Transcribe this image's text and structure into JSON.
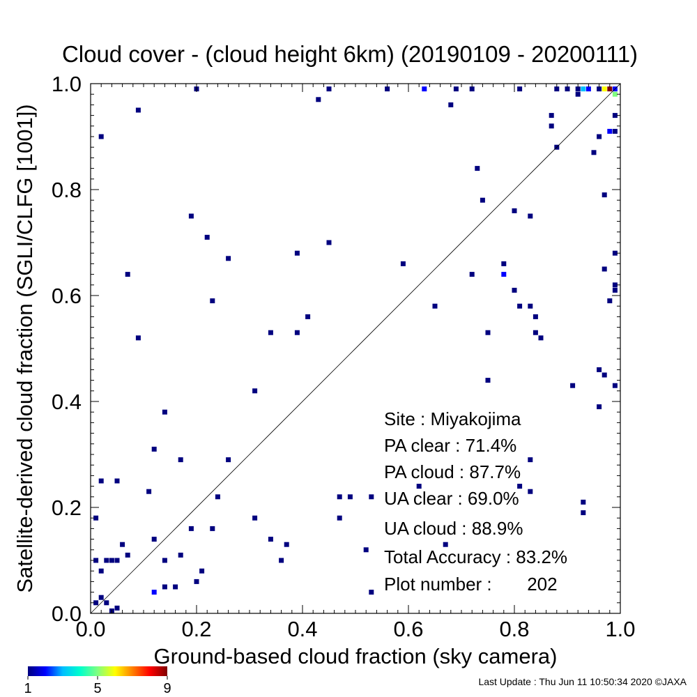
{
  "chart_data": {
    "type": "scatter",
    "title": "Cloud cover - (cloud height 6km)  (20190109 - 20200111)",
    "xlabel": "Ground-based cloud fraction (sky camera)",
    "ylabel": "Satellite-derived cloud fraction (SGLI/CLFG [1001])",
    "xlim": [
      0,
      1
    ],
    "ylim": [
      0,
      1
    ],
    "xticks": [
      "0.0",
      "0.2",
      "0.4",
      "0.6",
      "0.8",
      "1.0"
    ],
    "yticks": [
      "0.0",
      "0.2",
      "0.4",
      "0.6",
      "0.8",
      "1.0"
    ],
    "grid": false,
    "reference_line": "1:1 diagonal",
    "colorbar": {
      "ticks": [
        "1",
        "5",
        "9"
      ],
      "min": 1,
      "max": 9,
      "colors": [
        "#00007f",
        "#0000ff",
        "#00bfff",
        "#00ffcc",
        "#80ff80",
        "#ffff00",
        "#ff8000",
        "#ff0000",
        "#7f0000"
      ]
    },
    "stats": [
      "Site : Miyakojima",
      "PA clear :  71.4%",
      "PA cloud :  87.7%",
      "UA clear :  69.0%",
      "UA cloud :  88.9%",
      "Total Accuracy :  83.2%",
      "Plot number :       202"
    ],
    "footer": "Last Update : Thu Jun 11 10:50:34 2020  ©JAXA",
    "points": [
      [
        0.98,
        0.99,
        9
      ],
      [
        0.99,
        0.98,
        5
      ],
      [
        0.97,
        0.99,
        6
      ],
      [
        0.99,
        0.99,
        2
      ],
      [
        0.93,
        0.99,
        3
      ],
      [
        0.94,
        0.99,
        2
      ],
      [
        0.63,
        0.99,
        2
      ],
      [
        0.78,
        0.64,
        2
      ],
      [
        0.12,
        0.04,
        2
      ],
      [
        0.98,
        0.91,
        2
      ],
      [
        0.2,
        0.99,
        1
      ],
      [
        0.45,
        0.99,
        1
      ],
      [
        0.56,
        0.99,
        1
      ],
      [
        0.69,
        0.99,
        1
      ],
      [
        0.72,
        0.99,
        1
      ],
      [
        0.81,
        0.99,
        1
      ],
      [
        0.88,
        0.99,
        1
      ],
      [
        0.9,
        0.99,
        1
      ],
      [
        0.92,
        0.99,
        1
      ],
      [
        0.96,
        0.99,
        1
      ],
      [
        0.43,
        0.97,
        1
      ],
      [
        0.68,
        0.96,
        1
      ],
      [
        0.92,
        0.98,
        1
      ],
      [
        0.09,
        0.95,
        1
      ],
      [
        0.02,
        0.9,
        1
      ],
      [
        0.87,
        0.94,
        1
      ],
      [
        0.87,
        0.92,
        1
      ],
      [
        0.88,
        0.88,
        1
      ],
      [
        0.95,
        0.87,
        1
      ],
      [
        0.96,
        0.9,
        1
      ],
      [
        0.99,
        0.91,
        1
      ],
      [
        0.99,
        0.94,
        1
      ],
      [
        0.73,
        0.84,
        1
      ],
      [
        0.74,
        0.78,
        1
      ],
      [
        0.97,
        0.79,
        1
      ],
      [
        0.19,
        0.75,
        1
      ],
      [
        0.22,
        0.71,
        1
      ],
      [
        0.26,
        0.67,
        1
      ],
      [
        0.45,
        0.7,
        1
      ],
      [
        0.39,
        0.68,
        1
      ],
      [
        0.07,
        0.64,
        1
      ],
      [
        0.59,
        0.66,
        1
      ],
      [
        0.72,
        0.64,
        1
      ],
      [
        0.78,
        0.66,
        1
      ],
      [
        0.8,
        0.76,
        1
      ],
      [
        0.83,
        0.75,
        1
      ],
      [
        0.97,
        0.65,
        1
      ],
      [
        0.99,
        0.68,
        1
      ],
      [
        0.99,
        0.62,
        1
      ],
      [
        0.99,
        0.61,
        1
      ],
      [
        0.98,
        0.59,
        1
      ],
      [
        0.23,
        0.59,
        1
      ],
      [
        0.65,
        0.58,
        1
      ],
      [
        0.8,
        0.61,
        1
      ],
      [
        0.81,
        0.58,
        1
      ],
      [
        0.83,
        0.58,
        1
      ],
      [
        0.84,
        0.56,
        1
      ],
      [
        0.84,
        0.53,
        1
      ],
      [
        0.85,
        0.52,
        1
      ],
      [
        0.41,
        0.56,
        1
      ],
      [
        0.34,
        0.53,
        1
      ],
      [
        0.39,
        0.53,
        1
      ],
      [
        0.75,
        0.53,
        1
      ],
      [
        0.09,
        0.52,
        1
      ],
      [
        0.96,
        0.46,
        1
      ],
      [
        0.97,
        0.45,
        1
      ],
      [
        0.99,
        0.43,
        1
      ],
      [
        0.91,
        0.43,
        1
      ],
      [
        0.75,
        0.44,
        1
      ],
      [
        0.31,
        0.42,
        1
      ],
      [
        0.96,
        0.39,
        1
      ],
      [
        0.14,
        0.38,
        1
      ],
      [
        0.12,
        0.31,
        1
      ],
      [
        0.17,
        0.29,
        1
      ],
      [
        0.26,
        0.29,
        1
      ],
      [
        0.83,
        0.29,
        1
      ],
      [
        0.02,
        0.25,
        1
      ],
      [
        0.05,
        0.25,
        1
      ],
      [
        0.62,
        0.24,
        1
      ],
      [
        0.81,
        0.24,
        1
      ],
      [
        0.11,
        0.23,
        1
      ],
      [
        0.24,
        0.22,
        1
      ],
      [
        0.47,
        0.22,
        1
      ],
      [
        0.49,
        0.22,
        1
      ],
      [
        0.53,
        0.22,
        1
      ],
      [
        0.83,
        0.23,
        1
      ],
      [
        0.93,
        0.21,
        1
      ],
      [
        0.93,
        0.19,
        1
      ],
      [
        0.01,
        0.18,
        1
      ],
      [
        0.31,
        0.18,
        1
      ],
      [
        0.47,
        0.18,
        1
      ],
      [
        0.19,
        0.16,
        1
      ],
      [
        0.23,
        0.16,
        1
      ],
      [
        0.12,
        0.14,
        1
      ],
      [
        0.34,
        0.14,
        1
      ],
      [
        0.06,
        0.13,
        1
      ],
      [
        0.37,
        0.13,
        1
      ],
      [
        0.67,
        0.13,
        1
      ],
      [
        0.07,
        0.11,
        1
      ],
      [
        0.17,
        0.11,
        1
      ],
      [
        0.52,
        0.12,
        1
      ],
      [
        0.01,
        0.1,
        1
      ],
      [
        0.03,
        0.1,
        1
      ],
      [
        0.04,
        0.1,
        1
      ],
      [
        0.05,
        0.1,
        1
      ],
      [
        0.14,
        0.1,
        1
      ],
      [
        0.36,
        0.1,
        1
      ],
      [
        0.02,
        0.08,
        1
      ],
      [
        0.21,
        0.08,
        1
      ],
      [
        0.2,
        0.06,
        1
      ],
      [
        0.14,
        0.05,
        1
      ],
      [
        0.16,
        0.05,
        1
      ],
      [
        0.53,
        0.04,
        1
      ],
      [
        0.02,
        0.03,
        1
      ],
      [
        0.01,
        0.02,
        1
      ],
      [
        0.03,
        0.02,
        1
      ],
      [
        0.05,
        0.01,
        1
      ],
      [
        0.04,
        0.0,
        1
      ]
    ]
  }
}
